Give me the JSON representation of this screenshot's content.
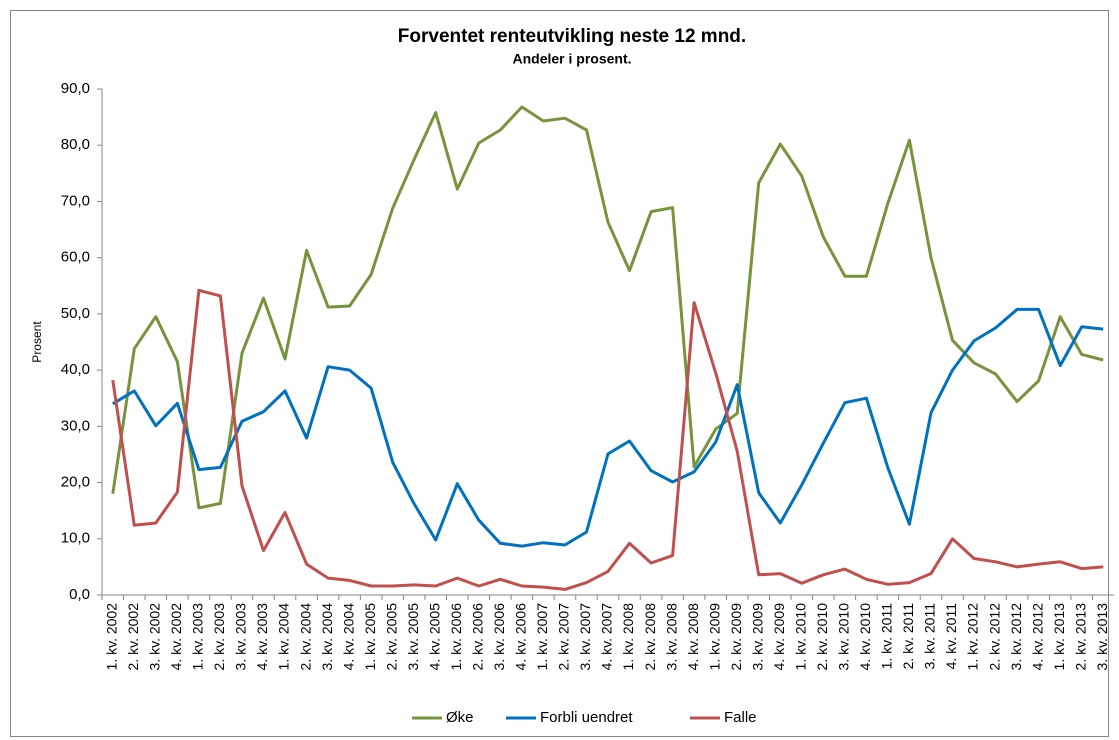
{
  "chart_data": {
    "type": "line",
    "title": "Forventet renteutvikling neste 12 mnd.",
    "subtitle": "Andeler i prosent.",
    "y_label": "Prosent",
    "categories": [
      "1. kv. 2002",
      "2. kv. 2002",
      "3. kv. 2002",
      "4. kv. 2002",
      "1. kv. 2003",
      "2. kv. 2003",
      "3. kv. 2003",
      "4. kv. 2003",
      "1. kv. 2004",
      "2. kv. 2004",
      "3. kv. 2004",
      "4. kv. 2004",
      "1. kv. 2005",
      "2. kv. 2005",
      "3. kv. 2005",
      "4. kv. 2005",
      "1. kv. 2006",
      "2. kv. 2006",
      "3. kv. 2006",
      "4. kv. 2006",
      "1. kv. 2007",
      "2. kv. 2007",
      "3. kv. 2007",
      "4. kv. 2007",
      "1. kv. 2008",
      "2. kv. 2008",
      "3. kv. 2008",
      "4. kv. 2008",
      "1. kv. 2009",
      "2. kv. 2009",
      "3. kv. 2009",
      "4. kv. 2009",
      "1. kv. 2010",
      "2. kv. 2010",
      "3. kv. 2010",
      "4. kv. 2010",
      "1. kv. 2011",
      "2. kv. 2011",
      "3. kv. 2011",
      "4. kv. 2011",
      "1. kv. 2012",
      "2. kv. 2012",
      "3. kv. 2012",
      "4. kv. 2012",
      "1. kv. 2013",
      "2. kv. 2013",
      "3. kv. 2013"
    ],
    "series": [
      {
        "name": "Øke",
        "color": "#77933c",
        "values": [
          18,
          43.8,
          49.5,
          41.5,
          15.5,
          16.3,
          43,
          52.8,
          42,
          61.3,
          51.2,
          51.4,
          57,
          68.8,
          77.5,
          85.8,
          72.2,
          80.4,
          82.7,
          86.8,
          84.3,
          84.8,
          82.7,
          66.3,
          57.7,
          68.2,
          68.9,
          22.8,
          29.5,
          32.3,
          73.3,
          80.2,
          74.5,
          63.7,
          56.7,
          56.7,
          69.7,
          80.9,
          60,
          45.3,
          41.3,
          39.3,
          34.4,
          38.1,
          49.5,
          42.8,
          41.8
        ]
      },
      {
        "name": "Forbli uendret",
        "color": "#0070c0",
        "values": [
          34,
          36.3,
          30.1,
          34.1,
          22.3,
          22.7,
          30.9,
          32.6,
          36.3,
          27.9,
          40.6,
          40,
          36.8,
          23.6,
          16.2,
          9.8,
          19.8,
          13.3,
          9.2,
          8.7,
          9.3,
          8.9,
          11.2,
          25.1,
          27.4,
          22.1,
          20.1,
          21.9,
          27.2,
          37.4,
          18.2,
          12.8,
          19.6,
          27,
          34.2,
          35,
          22.6,
          12.6,
          32.4,
          40,
          45.2,
          47.5,
          50.8,
          50.8,
          40.8,
          47.7,
          47.3
        ]
      },
      {
        "name": "Falle",
        "color": "#c0504d",
        "values": [
          38.2,
          12.4,
          12.8,
          18.3,
          54.2,
          53.2,
          19.4,
          7.9,
          14.7,
          5.5,
          3,
          2.6,
          1.6,
          1.6,
          1.8,
          1.6,
          3,
          1.6,
          2.8,
          1.6,
          1.4,
          1,
          2.2,
          4.2,
          9.2,
          5.7,
          7,
          52,
          39.5,
          25.6,
          3.6,
          3.8,
          2.1,
          3.6,
          4.6,
          2.8,
          1.9,
          2.2,
          3.8,
          10,
          6.5,
          5.9,
          5,
          5.5,
          5.9,
          4.7,
          5
        ]
      }
    ],
    "ylim": [
      0,
      90
    ],
    "yticks": [
      {
        "value": 0,
        "label": "0,0"
      },
      {
        "value": 10,
        "label": "10,0"
      },
      {
        "value": 20,
        "label": "20,0"
      },
      {
        "value": 30,
        "label": "30,0"
      },
      {
        "value": 40,
        "label": "40,0"
      },
      {
        "value": 50,
        "label": "50,0"
      },
      {
        "value": 60,
        "label": "60,0"
      },
      {
        "value": 70,
        "label": "70,0"
      },
      {
        "value": 80,
        "label": "80,0"
      },
      {
        "value": 90,
        "label": "90,0"
      }
    ],
    "grid": false,
    "legend": "bottom"
  }
}
